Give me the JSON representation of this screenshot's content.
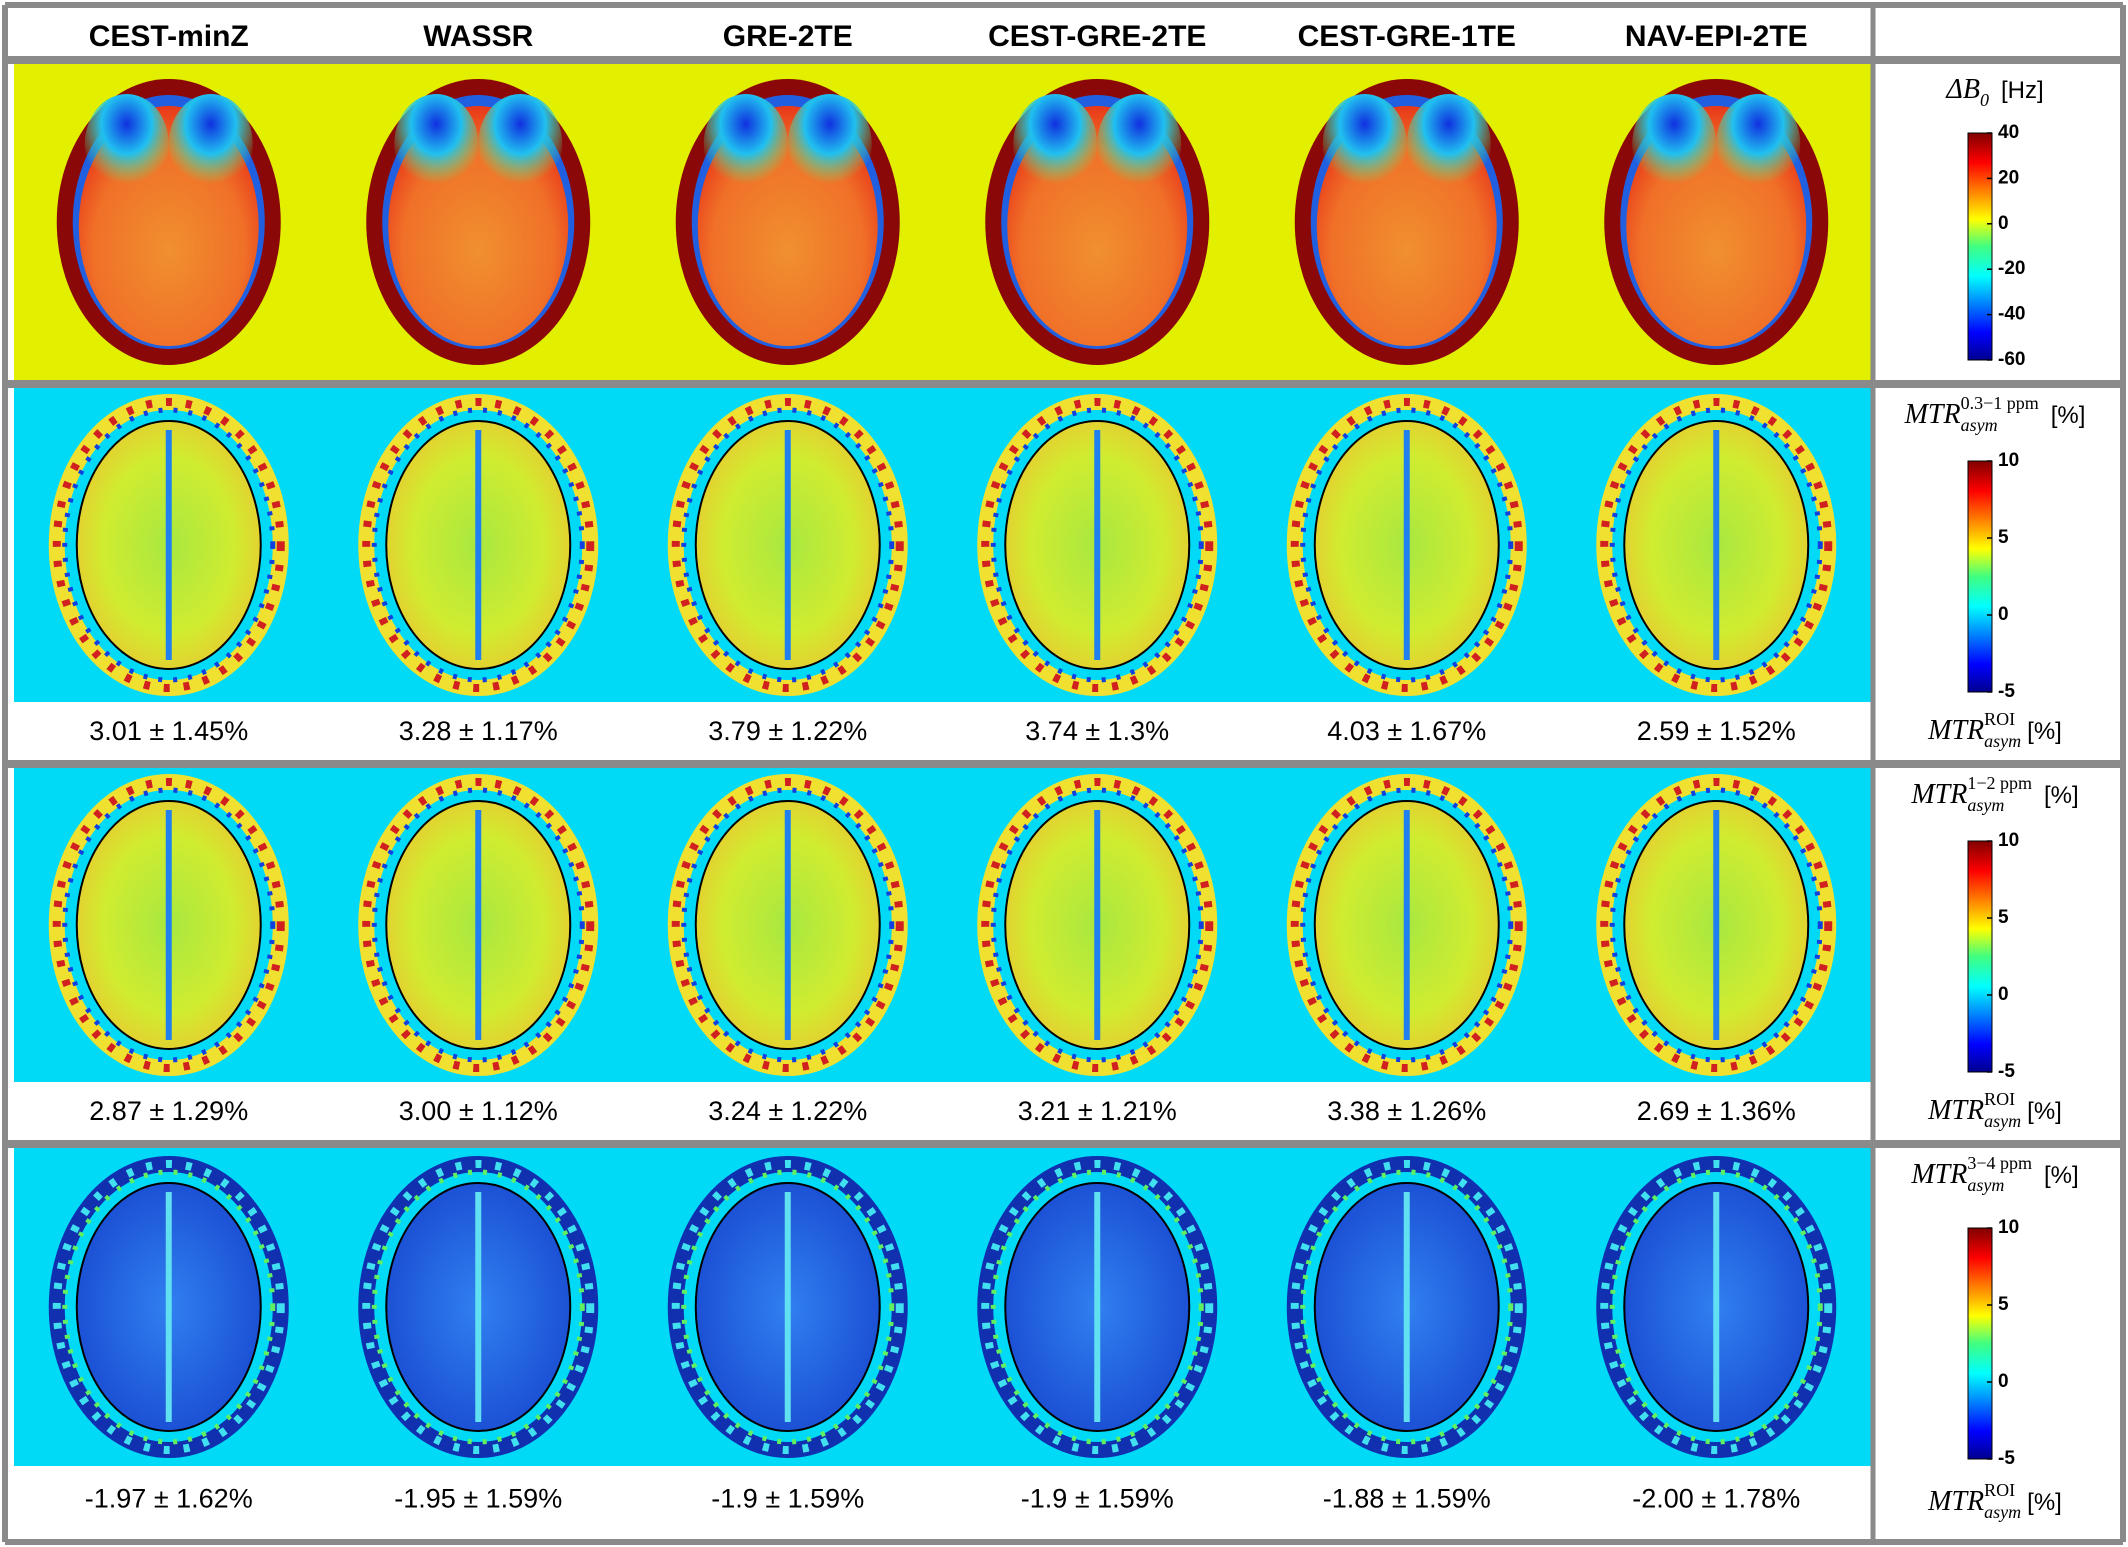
{
  "columns": [
    "CEST-minZ",
    "WASSR",
    "GRE-2TE",
    "CEST-GRE-2TE",
    "CEST-GRE-1TE",
    "NAV-EPI-2TE"
  ],
  "rows": [
    {
      "label": {
        "base": "ΔB",
        "sub": "0",
        "unit": "[Hz]"
      },
      "colorbar": {
        "lim": [
          -60,
          40
        ],
        "ticks": [
          40,
          20,
          0,
          -20,
          -40,
          -60
        ]
      }
    },
    {
      "label": {
        "base": "MTR",
        "sub": "asym",
        "sup": "0.3−1 ppm",
        "unit": "[%]"
      },
      "colorbar": {
        "lim": [
          -5,
          10
        ],
        "ticks": [
          10,
          5,
          0,
          -5
        ]
      },
      "roi_label": {
        "base": "MTR",
        "sub": "asym",
        "sup": "ROI",
        "unit": "[%]"
      },
      "values": [
        "3.01 ± 1.45%",
        "3.28 ± 1.17%",
        "3.79 ± 1.22%",
        "3.74 ± 1.3%",
        "4.03 ± 1.67%",
        "2.59 ± 1.52%"
      ]
    },
    {
      "label": {
        "base": "MTR",
        "sub": "asym",
        "sup": "1−2 ppm",
        "unit": "[%]"
      },
      "colorbar": {
        "lim": [
          -5,
          10
        ],
        "ticks": [
          10,
          5,
          0,
          -5
        ]
      },
      "roi_label": {
        "base": "MTR",
        "sub": "asym",
        "sup": "ROI",
        "unit": "[%]"
      },
      "values": [
        "2.87 ± 1.29%",
        "3.00 ± 1.12%",
        "3.24 ± 1.22%",
        "3.21 ± 1.21%",
        "3.38 ± 1.26%",
        "2.69 ± 1.36%"
      ]
    },
    {
      "label": {
        "base": "MTR",
        "sub": "asym",
        "sup": "3−4 ppm",
        "unit": "[%]"
      },
      "colorbar": {
        "lim": [
          -5,
          10
        ],
        "ticks": [
          10,
          5,
          0,
          -5
        ]
      },
      "roi_label": {
        "base": "MTR",
        "sub": "asym",
        "sup": "ROI",
        "unit": "[%]"
      },
      "values": [
        "-1.97 ± 1.62%",
        "-1.95 ± 1.59%",
        "-1.9 ± 1.59%",
        "-1.9 ± 1.59%",
        "-1.88 ± 1.59%",
        "-2.00 ± 1.78%"
      ]
    }
  ]
}
